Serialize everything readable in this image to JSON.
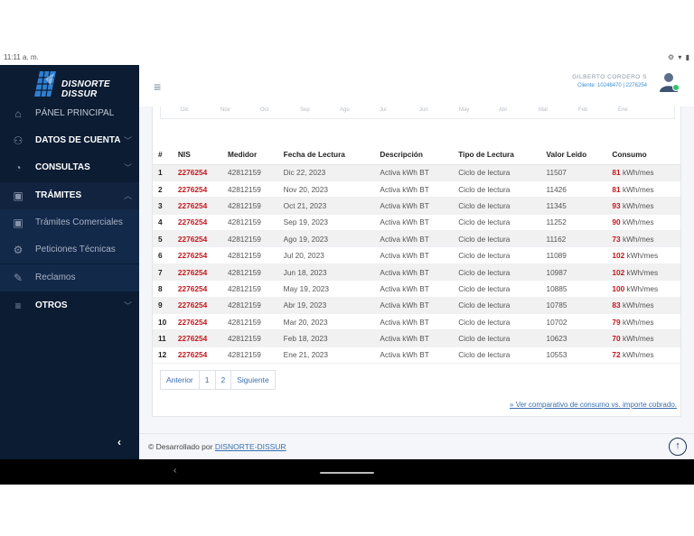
{
  "status_bar": {
    "time": "11:11 a. m.",
    "icons": "⚙ ▾ ▮"
  },
  "sidebar": {
    "logo_line1": "DISNORTE",
    "logo_line2": "DISSUR",
    "items": [
      {
        "label": "PÁNEL PRINCIPAL",
        "icon": "home-icon",
        "glyph": "⌂"
      },
      {
        "label": "DATOS DE CUENTA",
        "icon": "user-data-icon",
        "glyph": "⚇",
        "chev": "﹀"
      },
      {
        "label": "CONSULTAS",
        "icon": "gauge-icon",
        "glyph": "◔",
        "chev": "﹀"
      },
      {
        "label": "TRÁMITES",
        "icon": "briefcase-icon",
        "glyph": "▣",
        "chev": "︿"
      },
      {
        "label": "Trámites Comerciales",
        "icon": "briefcase-icon",
        "glyph": "▣"
      },
      {
        "label": "Peticiones Técnicas",
        "icon": "gear-icon",
        "glyph": "⚙"
      },
      {
        "label": "Reclamos",
        "icon": "edit-document-icon",
        "glyph": "✎"
      },
      {
        "label": "OTROS",
        "icon": "list-icon",
        "glyph": "≡",
        "chev": "﹀"
      }
    ],
    "collapse_glyph": "‹"
  },
  "header": {
    "menu_glyph": "≡",
    "user_name": "GILBERTO CORDERO S",
    "client_info": "Cliente: 10248470 | 2276254"
  },
  "chart_strip": [
    "Dic",
    "Nov",
    "Oct",
    "Sep",
    "Ago",
    "Jul",
    "Jun",
    "May",
    "Abr",
    "Mar",
    "Feb",
    "Ene"
  ],
  "table": {
    "headers": [
      "#",
      "NIS",
      "Medidor",
      "Fecha de Lectura",
      "Descripción",
      "Tipo de Lectura",
      "Valor Leido",
      "Consumo"
    ],
    "unit": "kWh/mes",
    "rows": [
      {
        "n": "1",
        "nis": "2276254",
        "medidor": "42812159",
        "fecha": "Dic 22, 2023",
        "desc": "Activa kWh BT",
        "tipo": "Ciclo de lectura",
        "valor": "11507",
        "consumo": "81"
      },
      {
        "n": "2",
        "nis": "2276254",
        "medidor": "42812159",
        "fecha": "Nov 20, 2023",
        "desc": "Activa kWh BT",
        "tipo": "Ciclo de lectura",
        "valor": "11426",
        "consumo": "81"
      },
      {
        "n": "3",
        "nis": "2276254",
        "medidor": "42812159",
        "fecha": "Oct 21, 2023",
        "desc": "Activa kWh BT",
        "tipo": "Ciclo de lectura",
        "valor": "11345",
        "consumo": "93"
      },
      {
        "n": "4",
        "nis": "2276254",
        "medidor": "42812159",
        "fecha": "Sep 19, 2023",
        "desc": "Activa kWh BT",
        "tipo": "Ciclo de lectura",
        "valor": "11252",
        "consumo": "90"
      },
      {
        "n": "5",
        "nis": "2276254",
        "medidor": "42812159",
        "fecha": "Ago 19, 2023",
        "desc": "Activa kWh BT",
        "tipo": "Ciclo de lectura",
        "valor": "11162",
        "consumo": "73"
      },
      {
        "n": "6",
        "nis": "2276254",
        "medidor": "42812159",
        "fecha": "Jul 20, 2023",
        "desc": "Activa kWh BT",
        "tipo": "Ciclo de lectura",
        "valor": "11089",
        "consumo": "102"
      },
      {
        "n": "7",
        "nis": "2276254",
        "medidor": "42812159",
        "fecha": "Jun 18, 2023",
        "desc": "Activa kWh BT",
        "tipo": "Ciclo de lectura",
        "valor": "10987",
        "consumo": "102"
      },
      {
        "n": "8",
        "nis": "2276254",
        "medidor": "42812159",
        "fecha": "May 19, 2023",
        "desc": "Activa kWh BT",
        "tipo": "Ciclo de lectura",
        "valor": "10885",
        "consumo": "100"
      },
      {
        "n": "9",
        "nis": "2276254",
        "medidor": "42812159",
        "fecha": "Abr 19, 2023",
        "desc": "Activa kWh BT",
        "tipo": "Ciclo de lectura",
        "valor": "10785",
        "consumo": "83"
      },
      {
        "n": "10",
        "nis": "2276254",
        "medidor": "42812159",
        "fecha": "Mar 20, 2023",
        "desc": "Activa kWh BT",
        "tipo": "Ciclo de lectura",
        "valor": "10702",
        "consumo": "79"
      },
      {
        "n": "11",
        "nis": "2276254",
        "medidor": "42812159",
        "fecha": "Feb 18, 2023",
        "desc": "Activa kWh BT",
        "tipo": "Ciclo de lectura",
        "valor": "10623",
        "consumo": "70"
      },
      {
        "n": "12",
        "nis": "2276254",
        "medidor": "42812159",
        "fecha": "Ene 21, 2023",
        "desc": "Activa kWh BT",
        "tipo": "Ciclo de lectura",
        "valor": "10553",
        "consumo": "72"
      }
    ]
  },
  "pagination": {
    "prev": "Anterior",
    "p1": "1",
    "p2": "2",
    "next": "Siguiente"
  },
  "compare_link": "» Ver comparativo de consumo vs. importe cobrado.",
  "footer": {
    "prefix": "© Desarrollado por",
    "link": "DISNORTE-DISSUR",
    "top_glyph": "↑"
  },
  "navbar": {
    "back_glyph": "‹"
  }
}
